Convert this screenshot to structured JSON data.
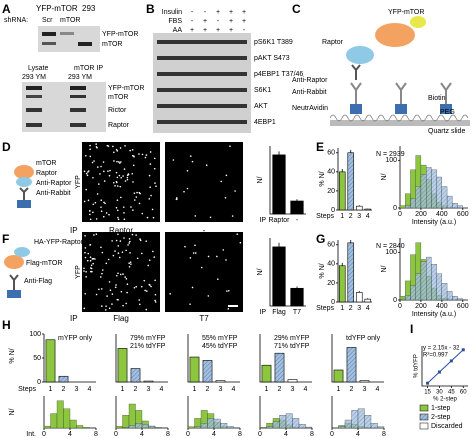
{
  "colors": {
    "step1": "#8cc63f",
    "step2": "#a3bfe0",
    "discarded": "#ffffff",
    "bar": "#000000"
  },
  "a": {
    "label": "A",
    "header": [
      "YFP-mTOR",
      "293"
    ],
    "shrna": "shRNA:",
    "lanes": [
      "Scr",
      "mTOR"
    ],
    "bands1": [
      "YFP-mTOR",
      "mTOR"
    ],
    "header2": [
      "Lysate",
      "mTOR IP"
    ],
    "lanes2": [
      "293 YM",
      "293 YM"
    ],
    "bands2": [
      "YFP-mTOR",
      "mTOR",
      "Rictor",
      "Raptor"
    ]
  },
  "b": {
    "label": "B",
    "conditions": [
      {
        "name": "Insulin",
        "signs": [
          "-",
          "-",
          "+",
          "+",
          "+"
        ]
      },
      {
        "name": "FBS",
        "signs": [
          "-",
          "+",
          "-",
          "+",
          "+"
        ]
      },
      {
        "name": "AA",
        "signs": [
          "+",
          "+",
          "+",
          "+",
          "-"
        ]
      }
    ],
    "bands": [
      "pS6K1 T389",
      "pAKT S473",
      "p4EBP1 T37/46",
      "S6K1",
      "AKT",
      "4EBP1"
    ]
  },
  "c": {
    "label": "C",
    "labels": [
      "YFP-mTOR",
      "Raptor",
      "Anti-Raptor",
      "Anti-Rabbit",
      "NeutrAvidin",
      "Biotin",
      "PEG",
      "Quartz slide"
    ]
  },
  "d": {
    "label": "D",
    "schematic": [
      "mTOR",
      "Raptor",
      "Anti-Raptor",
      "Anti-Rabbit"
    ],
    "channel": "YFP",
    "ip": "IP",
    "lanes": [
      "Raptor",
      "-"
    ],
    "bars": {
      "ylabel": "N/",
      "values": [
        1,
        0.22
      ],
      "errors": [
        0.06,
        0.03
      ],
      "ylim": [
        0,
        1.15
      ]
    }
  },
  "e": {
    "label": "E",
    "n": "N = 2939",
    "steps": "Steps",
    "categories": [
      "1",
      "2",
      "3",
      "4"
    ],
    "bars": {
      "ylabel": "% N/",
      "values": [
        40,
        60,
        4,
        1
      ],
      "errors": [
        3,
        3,
        1,
        0.5
      ],
      "ylim": [
        0,
        65
      ],
      "yticks": [
        0,
        20,
        40,
        60
      ]
    },
    "hist": {
      "ylabel": "N/",
      "xlabel": "Intensity (a.u.)",
      "bins": [
        0,
        50,
        100,
        150,
        200,
        250,
        300,
        350,
        400,
        450,
        500,
        550,
        600
      ],
      "xlim": [
        0,
        650
      ],
      "xticks": [
        0,
        200,
        400,
        600
      ],
      "ylim": [
        0,
        130
      ],
      "yticks": [
        0,
        100
      ],
      "green": [
        5,
        30,
        80,
        110,
        90,
        60,
        30,
        12,
        5,
        2,
        1,
        0
      ],
      "blue": [
        0,
        5,
        20,
        45,
        70,
        85,
        80,
        65,
        45,
        25,
        10,
        5
      ]
    }
  },
  "f": {
    "label": "F",
    "schematic": [
      "HA-YFP-Raptor",
      "Flag-mTOR",
      "Anti-Flag"
    ],
    "channel": "YFP",
    "ip": "IP",
    "lanes": [
      "Flag",
      "T7"
    ],
    "bars": {
      "ylabel": "N/",
      "values": [
        1,
        0.3
      ],
      "errors": [
        0.07,
        0.03
      ],
      "ylim": [
        0,
        1.15
      ]
    }
  },
  "g": {
    "label": "G",
    "n": "N = 2840",
    "steps": "Steps",
    "categories": [
      "1",
      "2",
      "3",
      "4"
    ],
    "bars": {
      "ylabel": "% N/",
      "values": [
        38,
        62,
        10,
        3
      ],
      "errors": [
        3,
        3,
        1.5,
        1
      ],
      "ylim": [
        0,
        65
      ],
      "yticks": [
        0,
        20,
        40,
        60
      ]
    },
    "hist": {
      "ylabel": "N/",
      "xlabel": "Intensity (a.u.)",
      "bins": [
        0,
        50,
        100,
        150,
        200,
        250,
        300,
        350,
        400,
        450,
        500,
        550,
        600
      ],
      "xlim": [
        0,
        650
      ],
      "xticks": [
        0,
        200,
        400,
        600
      ],
      "ylim": [
        0,
        130
      ],
      "yticks": [
        0,
        100
      ],
      "green": [
        8,
        40,
        95,
        120,
        85,
        50,
        25,
        10,
        4,
        2,
        1,
        0
      ],
      "blue": [
        2,
        10,
        30,
        55,
        80,
        90,
        75,
        55,
        35,
        18,
        8,
        3
      ]
    }
  },
  "h": {
    "label": "H",
    "bar_ylabel": "% N/",
    "steps": "Steps",
    "hist_ylabel": "N/",
    "int": "Int.",
    "categories": [
      "1",
      "2",
      "3",
      "4"
    ],
    "bar_ylim": [
      0,
      100
    ],
    "bar_yticks": [
      0,
      50,
      100
    ],
    "bins": [
      0,
      1,
      2,
      3,
      4,
      5,
      6,
      7,
      8
    ],
    "hist_xlim": [
      0,
      8
    ],
    "hist_ylim": [
      0,
      100
    ],
    "hist_xticks": [
      0,
      4,
      8
    ],
    "panels": [
      {
        "texts": [
          "mYFP only"
        ],
        "values": [
          88,
          12,
          0,
          0
        ],
        "green": [
          6,
          45,
          85,
          60,
          25,
          8,
          2,
          0
        ],
        "blue": [
          0,
          0,
          0,
          0,
          0,
          0,
          0,
          0
        ]
      },
      {
        "texts": [
          "79% mYFP",
          "21% tdYFP"
        ],
        "values": [
          70,
          28,
          2,
          0
        ],
        "green": [
          5,
          40,
          75,
          55,
          22,
          6,
          1,
          0
        ],
        "blue": [
          0,
          2,
          8,
          15,
          12,
          6,
          2,
          0
        ]
      },
      {
        "texts": [
          "55% mYFP",
          "45% tdYFP"
        ],
        "values": [
          52,
          45,
          3,
          0
        ],
        "green": [
          4,
          30,
          55,
          45,
          18,
          5,
          1,
          0
        ],
        "blue": [
          0,
          4,
          15,
          30,
          28,
          15,
          5,
          1
        ]
      },
      {
        "texts": [
          "29% mYFP",
          "71% tdYFP"
        ],
        "values": [
          35,
          60,
          5,
          0
        ],
        "green": [
          2,
          15,
          30,
          25,
          10,
          3,
          1,
          0
        ],
        "blue": [
          0,
          5,
          20,
          40,
          45,
          30,
          12,
          3
        ]
      },
      {
        "texts": [
          "tdYFP only"
        ],
        "values": [
          25,
          72,
          3,
          0
        ],
        "green": [
          1,
          8,
          15,
          12,
          5,
          2,
          0,
          0
        ],
        "blue": [
          0,
          5,
          25,
          55,
          60,
          40,
          15,
          4
        ]
      }
    ]
  },
  "i": {
    "label": "I",
    "equation": "y = 2.15x - 32",
    "r2": "R²=0.997",
    "x": [
      15,
      30,
      45,
      60
    ],
    "y": [
      0.25,
      32.5,
      64.75,
      97
    ],
    "xlim": [
      8,
      66
    ],
    "ylim": [
      -8,
      108
    ],
    "xticks": [
      15,
      30,
      45,
      60
    ],
    "xlabel": "% 2-step",
    "ylabel": "% tdYFP",
    "legend": [
      "1-step",
      "2-step",
      "Discarded"
    ]
  }
}
